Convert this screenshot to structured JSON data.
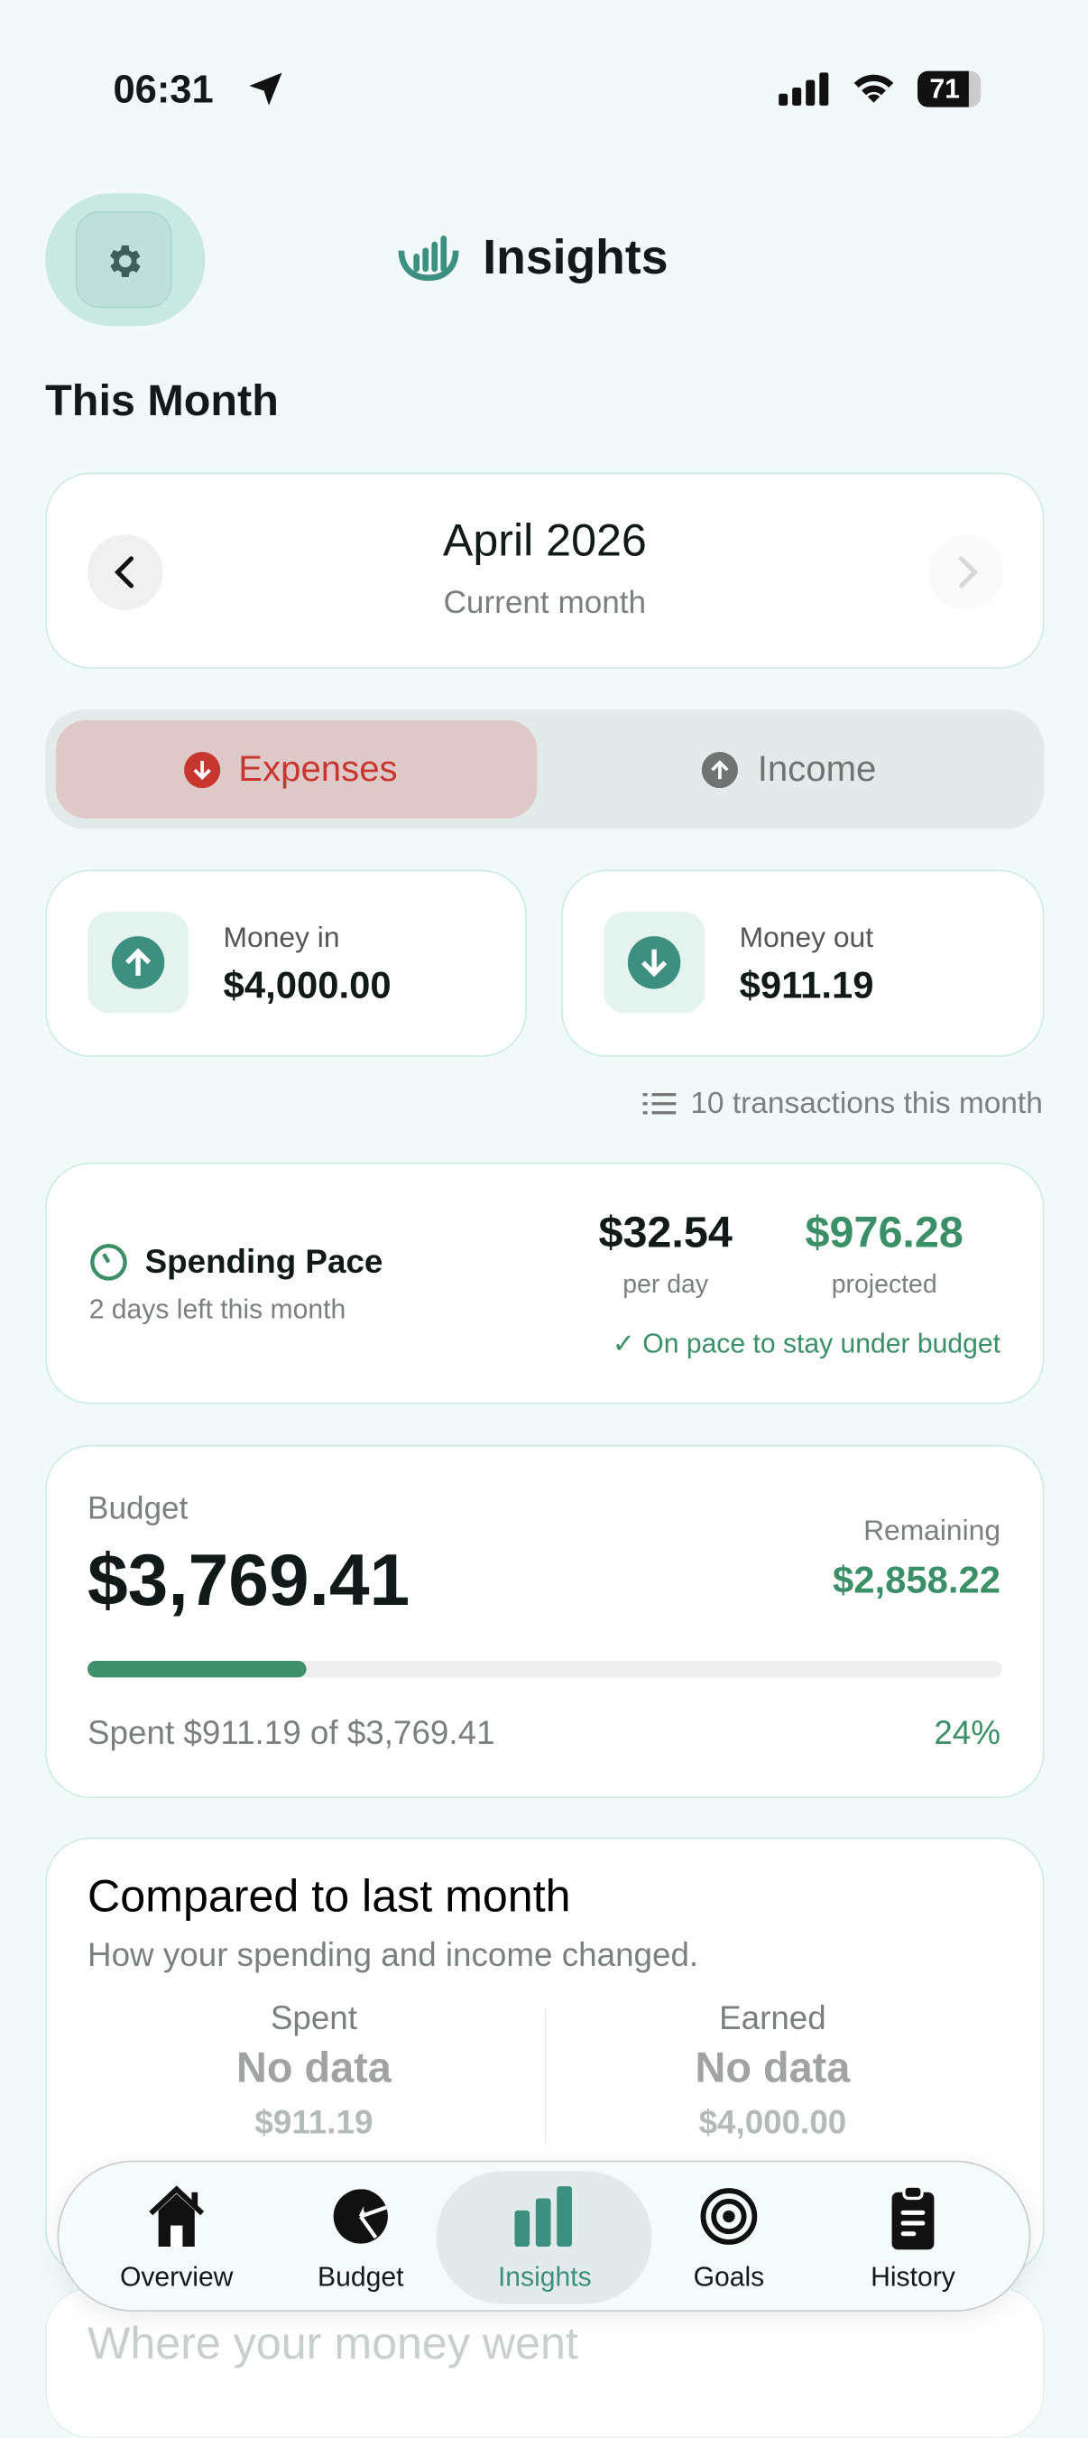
{
  "status": {
    "time": "06:31",
    "battery": "71"
  },
  "header": {
    "title": "Insights",
    "section": "This Month"
  },
  "month": {
    "label": "April 2026",
    "sub": "Current month"
  },
  "segment": {
    "expenses": "Expenses",
    "income": "Income",
    "selected": "Expenses"
  },
  "money_in": {
    "label": "Money in",
    "value": "$4,000.00"
  },
  "money_out": {
    "label": "Money out",
    "value": "$911.19"
  },
  "transactions": "10 transactions this month",
  "pace": {
    "title": "Spending Pace",
    "sub": "2 days left this month",
    "per_day": "$32.54",
    "per_day_label": "per day",
    "projected": "$976.28",
    "projected_label": "projected",
    "status": "✓ On pace to stay under budget"
  },
  "budget": {
    "label": "Budget",
    "amount": "$3,769.41",
    "remaining_label": "Remaining",
    "remaining": "$2,858.22",
    "spent_text": "Spent $911.19 of $3,769.41",
    "percent": "24%",
    "progress": 24
  },
  "compare": {
    "title": "Compared to last month",
    "sub": "How your spending and income changed.",
    "spent_label": "Spent",
    "spent_value": "No data",
    "spent_amount": "$911.19",
    "earned_label": "Earned",
    "earned_value": "No data",
    "earned_amount": "$4,000.00"
  },
  "next_section": "Where your money went",
  "nav": [
    {
      "label": "Overview",
      "icon": "home"
    },
    {
      "label": "Budget",
      "icon": "pie-chart"
    },
    {
      "label": "Insights",
      "icon": "bar-chart",
      "active": true
    },
    {
      "label": "Goals",
      "icon": "target"
    },
    {
      "label": "History",
      "icon": "clipboard"
    }
  ],
  "colors": {
    "accent": "#3d8f7f",
    "green": "#3a8f67",
    "red": "#c8372f",
    "background": "#f1faf8"
  }
}
